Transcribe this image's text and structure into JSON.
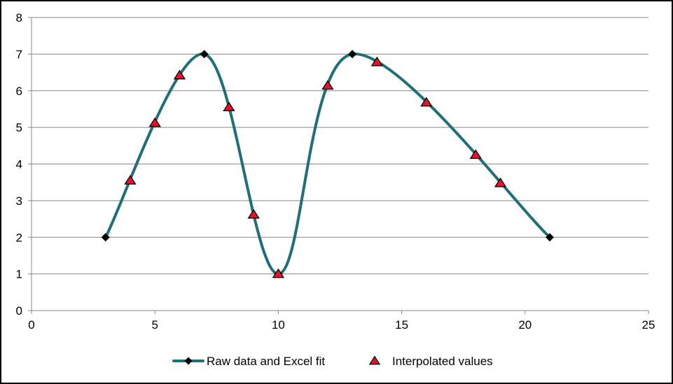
{
  "chart_data": {
    "type": "scatter",
    "xlim": [
      0,
      25
    ],
    "ylim": [
      0,
      8
    ],
    "x_ticks": [
      0,
      5,
      10,
      15,
      20,
      25
    ],
    "y_ticks": [
      0,
      1,
      2,
      3,
      4,
      5,
      6,
      7,
      8
    ],
    "grid": "horizontal",
    "legend_position": "bottom",
    "colors": {
      "fit_line": "#1f6e78",
      "raw_marker": "#000000",
      "interp_fill": "#e8112d",
      "interp_stroke": "#000000",
      "grid": "#888888",
      "axis": "#888888"
    },
    "series": [
      {
        "name": "Raw data and Excel fit",
        "marker": "diamond",
        "style": "smooth-line",
        "x": [
          3,
          7,
          10,
          13,
          21
        ],
        "y": [
          2,
          7,
          1,
          7,
          2
        ]
      },
      {
        "name": "Interpolated values",
        "marker": "triangle",
        "style": "markers-only",
        "x": [
          4,
          5,
          6,
          8,
          9,
          10,
          12,
          14,
          16,
          18,
          19
        ],
        "y": [
          3.55,
          5.12,
          6.42,
          5.55,
          2.62,
          1.0,
          6.14,
          6.78,
          5.68,
          4.25,
          3.48
        ]
      }
    ]
  }
}
